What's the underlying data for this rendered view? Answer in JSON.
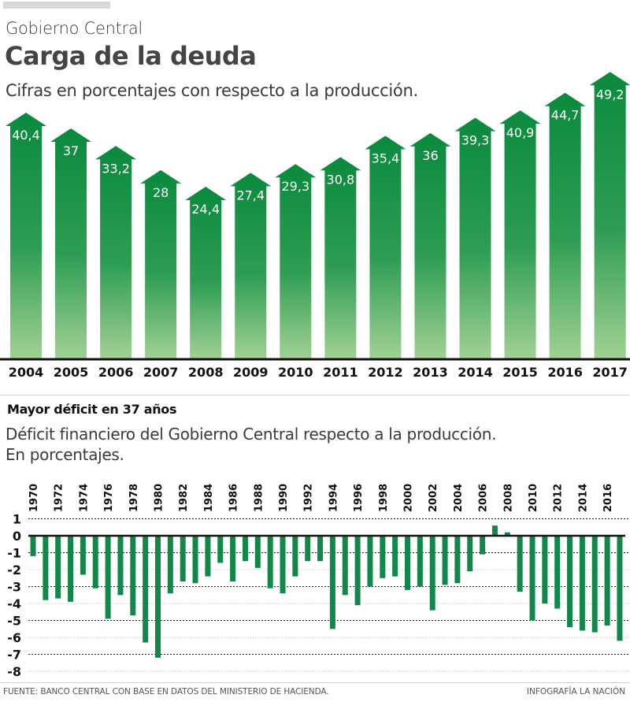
{
  "header": {
    "kicker": "Gobierno Central",
    "title": "Carga de la deuda",
    "subtitle": "Cifras en porcentajes con respecto a la producción."
  },
  "second": {
    "title": "Mayor déficit en 37 años",
    "desc_line1": "Déficit financiero del Gobierno Central respecto a la producción.",
    "desc_line2": "En porcentajes."
  },
  "footer": {
    "source": "FUENTE: BANCO CENTRAL CON BASE EN DATOS DEL MINISTERIO DE HACIENDA.",
    "credit": "INFOGRAFÍA LA NACIÓN"
  },
  "colors": {
    "arrow_top": "#0a8a3e",
    "arrow_bottom": "#a2d195",
    "bar": "#12874a",
    "axis": "#111111"
  },
  "chart_data": [
    {
      "type": "bar",
      "title": "Carga de la deuda",
      "subtitle": "Cifras en porcentajes con respecto a la producción.",
      "xlabel": "",
      "ylabel": "",
      "categories": [
        "2004",
        "2005",
        "2006",
        "2007",
        "2008",
        "2009",
        "2010",
        "2011",
        "2012",
        "2013",
        "2014",
        "2015",
        "2016",
        "2017"
      ],
      "values": [
        40.4,
        37,
        33.2,
        28,
        24.4,
        27.4,
        29.3,
        30.8,
        35.4,
        36,
        39.3,
        40.9,
        44.7,
        49.2
      ],
      "labels": [
        "40,4",
        "37",
        "33,2",
        "28",
        "24,4",
        "27,4",
        "29,3",
        "30,8",
        "35,4",
        "36",
        "39,3",
        "40,9",
        "44,7",
        "49,2"
      ],
      "grid": false,
      "legend": "none"
    },
    {
      "type": "bar",
      "title": "Mayor déficit en 37 años",
      "subtitle": "Déficit financiero del Gobierno Central respecto a la producción. En porcentajes.",
      "xlabel": "",
      "ylabel": "",
      "ylim": [
        -8,
        1
      ],
      "yticks": [
        1,
        0,
        -1,
        -2,
        -3,
        -4,
        -5,
        -6,
        -7,
        -8
      ],
      "xticks": [
        "1970",
        "1972",
        "1974",
        "1976",
        "1978",
        "1980",
        "1982",
        "1984",
        "1986",
        "1988",
        "1990",
        "1992",
        "1994",
        "1996",
        "1998",
        "2000",
        "2002",
        "2004",
        "2006",
        "2008",
        "2010",
        "2012",
        "2014",
        "2016"
      ],
      "categories": [
        "1970",
        "1971",
        "1972",
        "1973",
        "1974",
        "1975",
        "1976",
        "1977",
        "1978",
        "1979",
        "1980",
        "1981",
        "1982",
        "1983",
        "1984",
        "1985",
        "1986",
        "1987",
        "1988",
        "1989",
        "1990",
        "1991",
        "1992",
        "1993",
        "1994",
        "1995",
        "1996",
        "1997",
        "1998",
        "1999",
        "2000",
        "2001",
        "2002",
        "2003",
        "2004",
        "2005",
        "2006",
        "2007",
        "2008",
        "2009",
        "2010",
        "2011",
        "2012",
        "2013",
        "2014",
        "2015",
        "2016",
        "2017"
      ],
      "values": [
        -1.2,
        -3.8,
        -3.7,
        -3.9,
        -2.3,
        -3.1,
        -4.9,
        -3.5,
        -4.7,
        -6.3,
        -7.2,
        -3.4,
        -2.7,
        -2.8,
        -2.4,
        -1.6,
        -2.7,
        -1.5,
        -1.9,
        -3.1,
        -3.4,
        -2.4,
        -1.5,
        -1.5,
        -5.5,
        -3.5,
        -4.1,
        -3.0,
        -2.5,
        -2.4,
        -3.2,
        -3.0,
        -4.4,
        -2.9,
        -2.8,
        -2.1,
        -1.1,
        0.6,
        0.2,
        -3.3,
        -5.0,
        -4.0,
        -4.3,
        -5.4,
        -5.6,
        -5.7,
        -5.3,
        -6.2
      ],
      "grid": true,
      "legend": "none"
    }
  ]
}
